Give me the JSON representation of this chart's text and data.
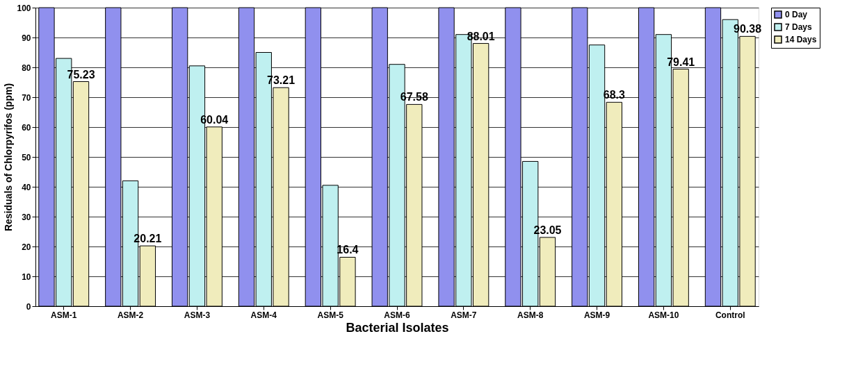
{
  "chart_data": {
    "type": "bar",
    "xlabel": "Bacterial Isolates",
    "ylabel": "Residuals of Chlorpyrifos (ppm)",
    "categories": [
      "ASM-1",
      "ASM-2",
      "ASM-3",
      "ASM-4",
      "ASM-5",
      "ASM-6",
      "ASM-7",
      "ASM-8",
      "ASM-9",
      "ASM-10",
      "Control"
    ],
    "series": [
      {
        "name": "0 Day",
        "color": "#9090ee",
        "values": [
          100,
          100,
          100,
          100,
          100,
          100,
          100,
          100,
          100,
          100,
          100
        ]
      },
      {
        "name": "7 Days",
        "color": "#bff0f0",
        "values": [
          83,
          42,
          80.5,
          85,
          40.5,
          81,
          91,
          48.5,
          87.5,
          91,
          96
        ]
      },
      {
        "name": "14 Days",
        "color": "#f0ecbc",
        "values": [
          75.23,
          20.21,
          60.04,
          73.21,
          16.4,
          67.58,
          88.01,
          23.05,
          68.3,
          79.41,
          90.38
        ],
        "value_labels": [
          "75.23",
          "20.21",
          "60.04",
          "73.21",
          "16.4",
          "67.58",
          "88.01",
          "23.05",
          "68.3",
          "79.41",
          "90.38"
        ]
      }
    ],
    "ylim": [
      0,
      100
    ],
    "yticks": [
      0,
      10,
      20,
      30,
      40,
      50,
      60,
      70,
      80,
      90,
      100
    ],
    "grid": "y",
    "legend": "right"
  }
}
